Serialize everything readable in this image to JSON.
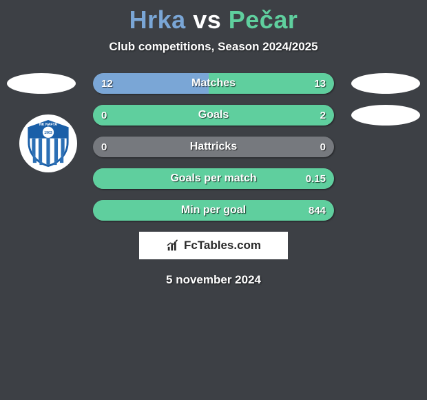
{
  "title": {
    "player1": "Hrka",
    "vs": "vs",
    "player2": "Pečar",
    "player1_color": "#7aa6d6",
    "player2_color": "#5fcf9e"
  },
  "subtitle": "Club competitions, Season 2024/2025",
  "background_color": "#3d4045",
  "bar_track_color": "#76797e",
  "player1_bar_color": "#7aa6d6",
  "player2_bar_color": "#5fcf9e",
  "text_color": "#ffffff",
  "stats": [
    {
      "label": "Matches",
      "left_val": "12",
      "right_val": "13",
      "left_pct": 48,
      "right_pct": 52
    },
    {
      "label": "Goals",
      "left_val": "0",
      "right_val": "2",
      "left_pct": 0,
      "right_pct": 100
    },
    {
      "label": "Hattricks",
      "left_val": "0",
      "right_val": "0",
      "left_pct": 0,
      "right_pct": 0
    },
    {
      "label": "Goals per match",
      "left_val": "",
      "right_val": "0.15",
      "left_pct": 0,
      "right_pct": 100
    },
    {
      "label": "Min per goal",
      "left_val": "",
      "right_val": "844",
      "left_pct": 0,
      "right_pct": 100
    }
  ],
  "club_badge": {
    "name": "NK NAFTA",
    "year": "1903",
    "shield_color": "#1a5fa8",
    "stripe_color": "#2b6fb5"
  },
  "brand": "FcTables.com",
  "date": "5 november 2024"
}
